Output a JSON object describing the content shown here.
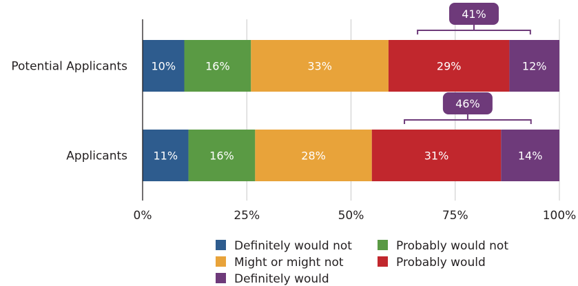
{
  "chart_data": {
    "type": "bar",
    "orientation": "horizontal",
    "stacked": true,
    "categories": [
      "Potential Applicants",
      "Applicants"
    ],
    "series": [
      {
        "name": "Definitely would not",
        "color": "#2e5c8e",
        "values": [
          10,
          11
        ],
        "labels": [
          "10%",
          "11%"
        ]
      },
      {
        "name": "Probably would not",
        "color": "#5a9a44",
        "values": [
          16,
          16
        ],
        "labels": [
          "16%",
          "16%"
        ]
      },
      {
        "name": "Might or might not",
        "color": "#e8a33a",
        "values": [
          33,
          28
        ],
        "labels": [
          "33%",
          "28%"
        ]
      },
      {
        "name": "Probably would",
        "color": "#c1272d",
        "values": [
          29,
          31
        ],
        "labels": [
          "29%",
          "31%"
        ]
      },
      {
        "name": "Definitely would",
        "color": "#6e3a7a",
        "values": [
          12,
          14
        ],
        "labels": [
          "12%",
          "14%"
        ]
      }
    ],
    "callouts": [
      {
        "category": "Potential Applicants",
        "value": 41,
        "label": "41%",
        "series": [
          "Probably would",
          "Definitely would"
        ]
      },
      {
        "category": "Applicants",
        "value": 46,
        "label": "46%",
        "series": [
          "Probably would",
          "Definitely would"
        ]
      }
    ],
    "xlim": [
      0,
      100
    ],
    "xticks": [
      0,
      25,
      50,
      75,
      100
    ],
    "xtick_labels": [
      "0%",
      "25%",
      "50%",
      "75%",
      "100%"
    ],
    "grid": true,
    "legend_position": "bottom-center",
    "title": "",
    "xlabel": "",
    "ylabel": ""
  }
}
